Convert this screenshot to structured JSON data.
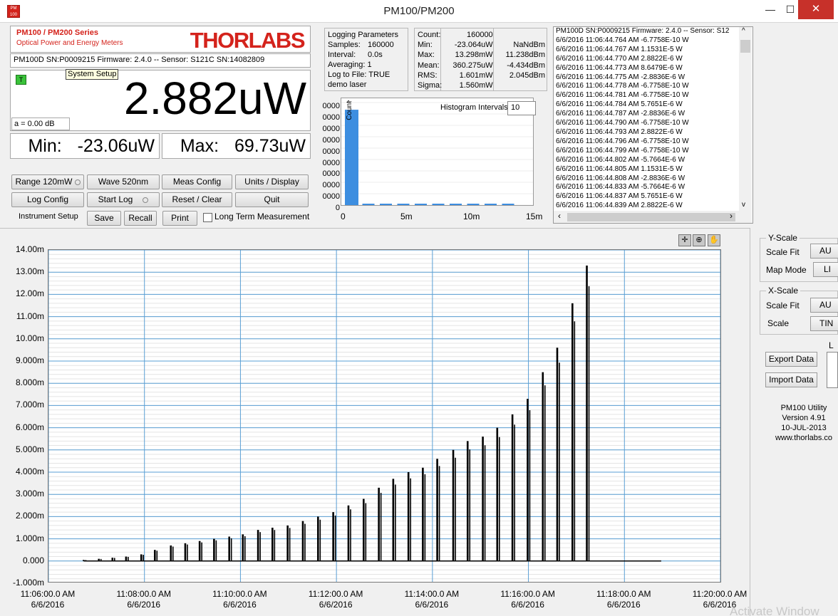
{
  "window": {
    "title": "PM100/PM200",
    "icon_text": "PM 100",
    "controls": {
      "minimize": "—",
      "maximize": "☐",
      "close": "✕"
    }
  },
  "brand": {
    "series": "PM100 / PM200 Series",
    "subtitle": "Optical Power and Energy Meters",
    "logo": "THORLABS",
    "logo_color": "#d4231c"
  },
  "device": {
    "info": "PM100D  SN:P0009215  Firmware: 2.4.0 -- Sensor: S121C  SN:14082809"
  },
  "tooltip": "System Setup",
  "reading": {
    "trigger_badge": "T",
    "value": "2.882uW",
    "attenuation": "a = 0.00  dB",
    "min_label": "Min:",
    "min_value": "-23.06uW",
    "max_label": "Max:",
    "max_value": "69.73uW"
  },
  "buttons": {
    "range": "Range 120mW",
    "wave": "Wave 520nm",
    "meas_config": "Meas Config",
    "units_display": "Units / Display",
    "log_config": "Log Config",
    "start_log": "Start Log",
    "reset_clear": "Reset / Clear",
    "quit": "Quit",
    "instrument_setup": "Instrument Setup",
    "save": "Save",
    "recall": "Recall",
    "print": "Print",
    "long_term": "Long Term Measurement"
  },
  "logging_params": {
    "title": "Logging Parameters",
    "samples_label": "Samples:",
    "samples_value": "160000",
    "interval_label": "Interval:",
    "interval_value": "0.0s",
    "averaging": "Averaging: 1",
    "log_to_file": "Log to File: TRUE",
    "name": "demo laser"
  },
  "stats": {
    "rows": [
      {
        "label": "Count:",
        "w": "160000",
        "dbm": ""
      },
      {
        "label": "Min:",
        "w": "-23.064uW",
        "dbm": "NaNdBm"
      },
      {
        "label": "Max:",
        "w": "13.298mW",
        "dbm": "11.238dBm"
      },
      {
        "label": "Mean:",
        "w": "360.275uW",
        "dbm": "-4.434dBm"
      },
      {
        "label": "RMS:",
        "w": "1.601mW",
        "dbm": "2.045dBm"
      },
      {
        "label": "Sigma:",
        "w": "1.560mW",
        "dbm": ""
      }
    ]
  },
  "histogram": {
    "intervals_label": "Histogram Intervals",
    "intervals_value": "10",
    "y_axis_label": "Count",
    "y_ticks": [
      "0000",
      "0000",
      "0000",
      "0000",
      "0000",
      "0000",
      "0000",
      "0000",
      "0000",
      "0"
    ],
    "x_ticks": [
      "0",
      "5m",
      "10m",
      "15m"
    ],
    "bar_fracs": [
      0.93,
      0.012,
      0.01,
      0.008,
      0.006,
      0.006,
      0.005,
      0.005,
      0.006,
      0.004
    ],
    "bar_color": "#3d8ee0"
  },
  "log_lines": [
    "PM100D  SN:P0009215  Firmware: 2.4.0 -- Sensor: S12",
    "6/6/2016 11:06:44.764 AM -6.7758E-10 W",
    "6/6/2016 11:06:44.767 AM 1.1531E-5 W",
    "6/6/2016 11:06:44.770 AM 2.8822E-6 W",
    "6/6/2016 11:06:44.773 AM 8.6479E-6 W",
    "6/6/2016 11:06:44.775 AM -2.8836E-6 W",
    "6/6/2016 11:06:44.778 AM -6.7758E-10 W",
    "6/6/2016 11:06:44.781 AM -6.7758E-10 W",
    "6/6/2016 11:06:44.784 AM 5.7651E-6 W",
    "6/6/2016 11:06:44.787 AM -2.8836E-6 W",
    "6/6/2016 11:06:44.790 AM -6.7758E-10 W",
    "6/6/2016 11:06:44.793 AM 2.8822E-6 W",
    "6/6/2016 11:06:44.796 AM -6.7758E-10 W",
    "6/6/2016 11:06:44.799 AM -6.7758E-10 W",
    "6/6/2016 11:06:44.802 AM -5.7664E-6 W",
    "6/6/2016 11:06:44.805 AM 1.1531E-5 W",
    "6/6/2016 11:06:44.808 AM -2.8836E-6 W",
    "6/6/2016 11:06:44.833 AM -5.7664E-6 W",
    "6/6/2016 11:06:44.837 AM 5.7651E-6 W",
    "6/6/2016 11:06:44.839 AM 2.8822E-6 W"
  ],
  "plot_tools": [
    "cursor-icon",
    "zoom-icon",
    "pan-icon"
  ],
  "chart_data": {
    "type": "line",
    "y_ticks": [
      "14.00m",
      "13.00m",
      "12.00m",
      "11.00m",
      "10.00m",
      "9.000m",
      "8.000m",
      "7.000m",
      "6.000m",
      "5.000m",
      "4.000m",
      "3.000m",
      "2.000m",
      "1.000m",
      "0.000",
      "-1.000m"
    ],
    "ylim": [
      -0.001,
      0.014
    ],
    "x_ticks": [
      {
        "time": "11:06:00.0 AM",
        "date": "6/6/2016"
      },
      {
        "time": "11:08:00.0 AM",
        "date": "6/6/2016"
      },
      {
        "time": "11:10:00.0 AM",
        "date": "6/6/2016"
      },
      {
        "time": "11:12:00.0 AM",
        "date": "6/6/2016"
      },
      {
        "time": "11:14:00.0 AM",
        "date": "6/6/2016"
      },
      {
        "time": "11:16:00.0 AM",
        "date": "6/6/2016"
      },
      {
        "time": "11:18:00.0 AM",
        "date": "6/6/2016"
      },
      {
        "time": "11:20:00.0 AM",
        "date": "6/6/2016"
      }
    ],
    "xlim": [
      "11:06:00",
      "11:20:00"
    ],
    "series": [
      {
        "x": [
          "11:06:44",
          "11:07:03",
          "11:07:20",
          "11:07:37",
          "11:07:56",
          "11:08:13",
          "11:08:33",
          "11:08:51",
          "11:09:09",
          "11:09:27",
          "11:09:46",
          "11:10:03",
          "11:10:22",
          "11:10:40",
          "11:10:59",
          "11:11:18",
          "11:11:37",
          "11:11:56",
          "11:12:15",
          "11:12:34",
          "11:12:53",
          "11:13:11",
          "11:13:30",
          "11:13:48",
          "11:14:06",
          "11:14:26",
          "11:14:44",
          "11:15:03",
          "11:15:21",
          "11:15:40",
          "11:15:59",
          "11:16:18",
          "11:16:36",
          "11:16:55",
          "11:17:13"
        ],
        "y": [
          5e-05,
          0.0001,
          0.00015,
          0.0002,
          0.0003,
          0.0005,
          0.0007,
          0.0008,
          0.0009,
          0.001,
          0.0011,
          0.0012,
          0.0014,
          0.0015,
          0.0016,
          0.0018,
          0.002,
          0.0022,
          0.0025,
          0.0028,
          0.0033,
          0.0037,
          0.004,
          0.0042,
          0.0046,
          0.005,
          0.0054,
          0.0056,
          0.006,
          0.0066,
          0.0073,
          0.0085,
          0.0096,
          0.0116,
          0.0133
        ]
      }
    ],
    "trace_color": "#000000",
    "grid_color": "#5a9fd4"
  },
  "right_panel": {
    "y_scale_title": "Y-Scale",
    "y_scale_fit_label": "Scale Fit",
    "y_scale_fit_value": "AU",
    "map_mode_label": "Map Mode",
    "map_mode_value": "LI",
    "x_scale_title": "X-Scale",
    "x_scale_fit_label": "Scale Fit",
    "x_scale_fit_value": "AU",
    "x_scale_label": "Scale",
    "x_scale_value": "TIN",
    "export": "Export Data",
    "import": "Import Data",
    "l_label": "L",
    "about": [
      "PM100 Utility",
      "Version 4.91",
      "10-JUL-2013",
      "www.thorlabs.co"
    ]
  },
  "watermark": "Activate Window"
}
